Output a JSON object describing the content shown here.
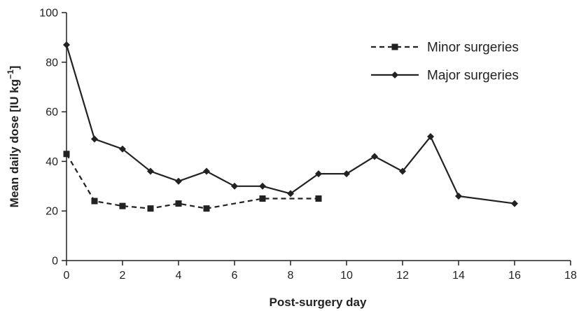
{
  "chart_data": {
    "type": "line",
    "xlabel": "Post-surgery day",
    "ylabel_main": "Mean daily dose [IU kg",
    "ylabel_sup": "−1",
    "ylabel_close": "]",
    "xlim": [
      0,
      18
    ],
    "ylim": [
      0,
      100
    ],
    "x_ticks": [
      0,
      2,
      4,
      6,
      8,
      10,
      12,
      14,
      16,
      18
    ],
    "y_ticks": [
      0,
      20,
      40,
      60,
      80,
      100
    ],
    "grid": false,
    "legend_position": "top-right",
    "series": [
      {
        "name": "Minor surgeries",
        "line_style": "dashed",
        "marker": "square",
        "color": "#222222",
        "x": [
          0,
          1,
          2,
          3,
          4,
          5,
          7,
          9
        ],
        "y": [
          43,
          24,
          22,
          21,
          23,
          21,
          25,
          25
        ]
      },
      {
        "name": "Major surgeries",
        "line_style": "solid",
        "marker": "diamond",
        "color": "#222222",
        "x": [
          0,
          1,
          2,
          3,
          4,
          5,
          6,
          7,
          8,
          9,
          10,
          11,
          12,
          13,
          14,
          16
        ],
        "y": [
          87,
          49,
          45,
          36,
          32,
          36,
          30,
          30,
          27,
          35,
          35,
          42,
          36,
          50,
          26,
          23
        ]
      }
    ]
  }
}
